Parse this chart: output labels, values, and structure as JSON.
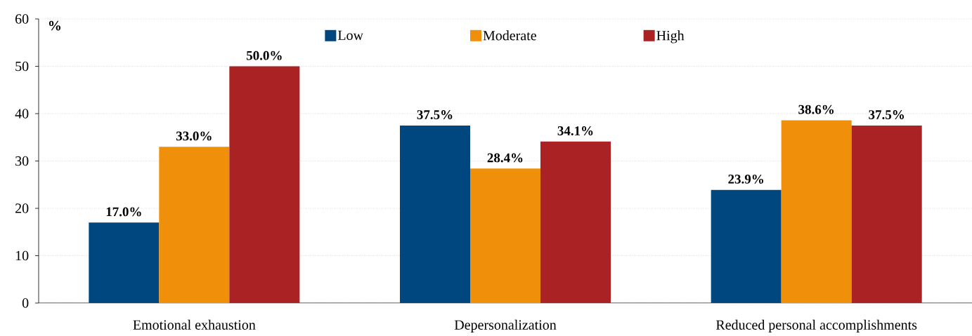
{
  "chart_data": {
    "type": "bar",
    "ylabel": "%",
    "categories": [
      "Emotional exhaustion",
      "Depersonalization",
      "Reduced personal accomplishments"
    ],
    "series": [
      {
        "name": "Low",
        "color": "#00467f",
        "values": [
          17.0,
          37.5,
          23.9
        ],
        "value_labels": [
          "17.0%",
          "37.5%",
          "23.9%"
        ]
      },
      {
        "name": "Moderate",
        "color": "#f0900a",
        "values": [
          33.0,
          28.4,
          38.6
        ],
        "value_labels": [
          "33.0%",
          "28.4%",
          "38.6%"
        ]
      },
      {
        "name": "High",
        "color": "#aa2224",
        "values": [
          50.0,
          34.1,
          37.5
        ],
        "value_labels": [
          "50.0%",
          "34.1%",
          "37.5%"
        ]
      }
    ],
    "ylim": [
      0,
      60
    ],
    "yticks": [
      0,
      10,
      20,
      30,
      40,
      50,
      60
    ],
    "grid": "y",
    "legend": "top"
  }
}
